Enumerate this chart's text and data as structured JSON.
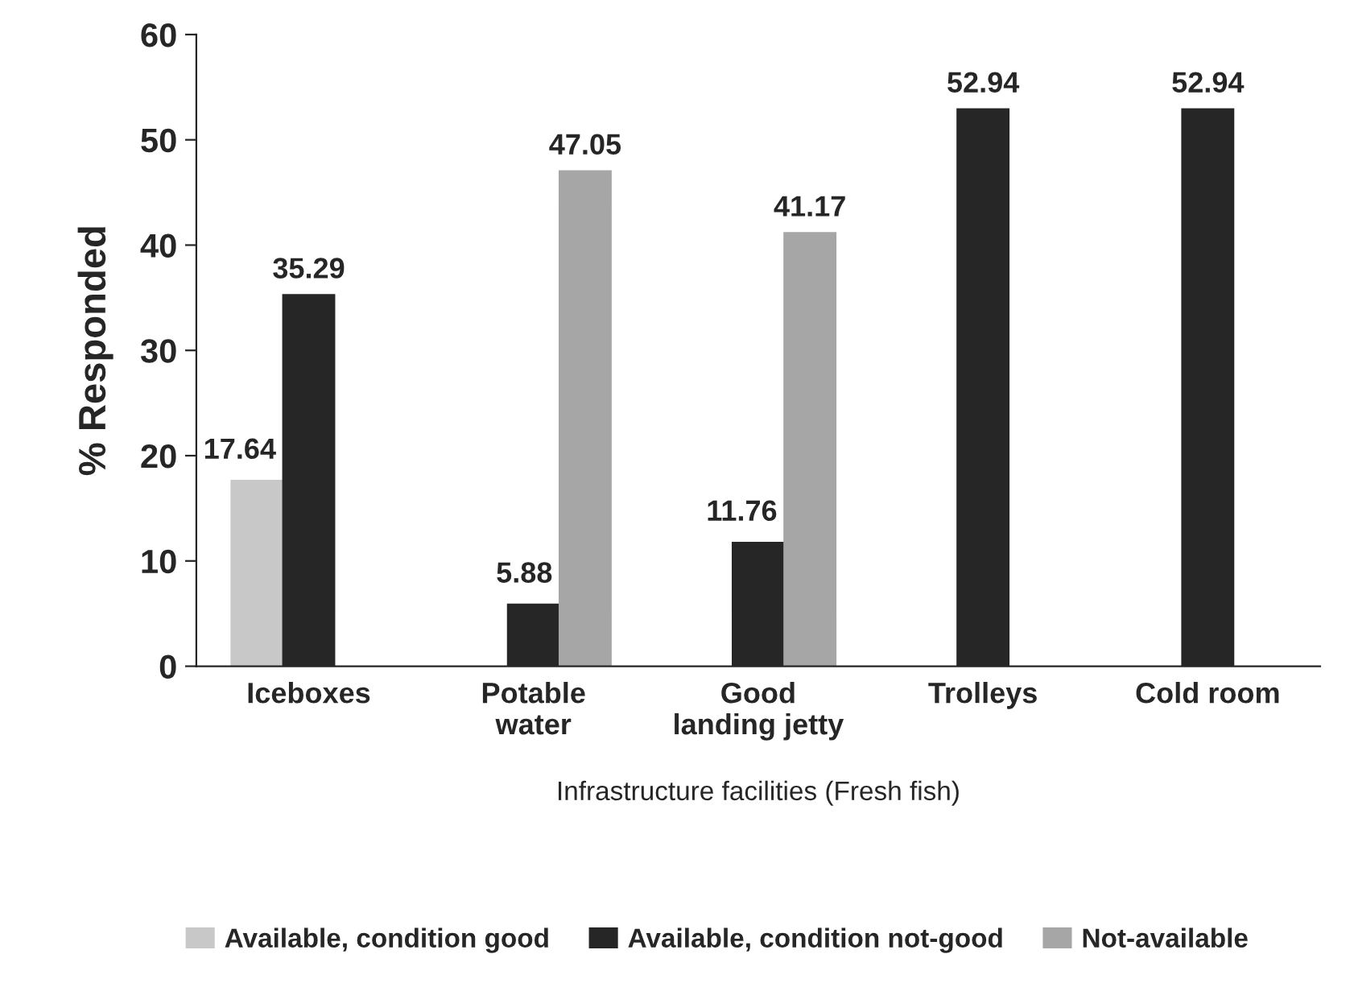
{
  "chart_data": {
    "type": "bar",
    "xlabel": "Infrastructure facilities (Fresh fish)",
    "ylabel": "% Responded",
    "categories": [
      "Iceboxes",
      "Potable\nwater",
      "Good\nlanding jetty",
      "Trolleys",
      "Cold room"
    ],
    "series": [
      {
        "name": "Available, condition good",
        "color": "#c8c8c8",
        "values": [
          17.64,
          null,
          null,
          null,
          null
        ],
        "value_labels": [
          "17.64",
          null,
          null,
          null,
          null
        ]
      },
      {
        "name": "Available, condition not-good",
        "color": "#262626",
        "values": [
          35.29,
          5.88,
          11.76,
          52.94,
          52.94
        ],
        "value_labels": [
          "35.29",
          "5.88",
          "11.76",
          "52.94",
          "52.94"
        ]
      },
      {
        "name": "Not-available",
        "color": "#a6a6a6",
        "values": [
          null,
          47.05,
          41.17,
          null,
          null
        ],
        "value_labels": [
          null,
          "47.05",
          "41.17",
          null,
          null
        ]
      }
    ],
    "ylim": [
      0,
      60
    ],
    "yticks": [
      0,
      10,
      20,
      30,
      40,
      50,
      60
    ],
    "grid": false,
    "legend": "bottom"
  }
}
